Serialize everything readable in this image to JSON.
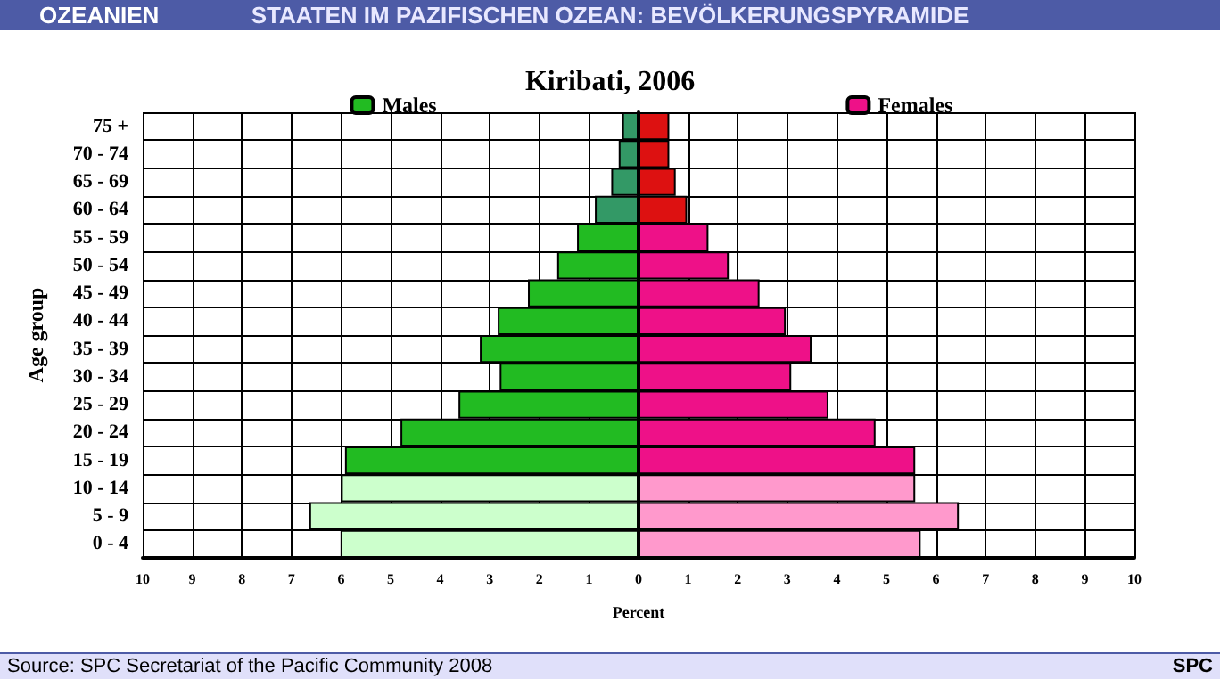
{
  "chart_data": {
    "type": "bar",
    "orientation": "horizontal",
    "stacked": true,
    "title": "Kiribati, 2006",
    "xlabel": "Percent",
    "ylabel": "Age group",
    "annotations": [
      "OZEANIEN",
      "STAATEN IM PAZIFISCHEN OZEAN: BEVÖLKERUNGSPYRAMIDE",
      "Source: SPC Secretariat of the Pacific Community 2008",
      "SPC"
    ],
    "categories": [
      "75 +",
      "70 - 74",
      "65 - 69",
      "60 - 64",
      "55 - 59",
      "50 - 54",
      "45 - 49",
      "40 - 44",
      "35 - 39",
      "30 - 34",
      "25 - 29",
      "20 - 24",
      "15 - 19",
      "10 - 14",
      "5 - 9",
      "0 - 4"
    ],
    "series": [
      {
        "name": "Males",
        "color": "#22bb22",
        "colors": [
          "#339966",
          "#339966",
          "#339966",
          "#339966",
          "#22bb22",
          "#22bb22",
          "#22bb22",
          "#22bb22",
          "#22bb22",
          "#22bb22",
          "#22bb22",
          "#22bb22",
          "#22bb22",
          "#ccffcc",
          "#ccffcc",
          "#ccffcc"
        ],
        "values": [
          -0.33,
          -0.4,
          -0.55,
          -0.88,
          -1.24,
          -1.64,
          -2.23,
          -2.84,
          -3.2,
          -2.8,
          -3.63,
          -4.8,
          -5.92,
          -6.0,
          -6.64,
          -6.01
        ]
      },
      {
        "name": "Females",
        "color": "#ee1188",
        "colors": [
          "#dd1111",
          "#dd1111",
          "#dd1111",
          "#dd1111",
          "#ee1188",
          "#ee1188",
          "#ee1188",
          "#ee1188",
          "#ee1188",
          "#ee1188",
          "#ee1188",
          "#ee1188",
          "#ee1188",
          "#ff99cc",
          "#ff99cc",
          "#ff99cc"
        ],
        "values": [
          0.62,
          0.62,
          0.75,
          0.98,
          1.41,
          1.82,
          2.44,
          2.97,
          3.49,
          3.08,
          3.83,
          4.78,
          5.58,
          5.58,
          6.46,
          5.69
        ]
      }
    ],
    "xlim": [
      -10,
      10
    ],
    "xticks": [
      {
        "value": -10,
        "label": "10"
      },
      {
        "value": -9,
        "label": "9"
      },
      {
        "value": -8,
        "label": "8"
      },
      {
        "value": -7,
        "label": "7"
      },
      {
        "value": -6,
        "label": "6"
      },
      {
        "value": -5,
        "label": "5"
      },
      {
        "value": -4,
        "label": "4"
      },
      {
        "value": -3,
        "label": "3"
      },
      {
        "value": -2,
        "label": "2"
      },
      {
        "value": -1,
        "label": "1"
      },
      0,
      1,
      2,
      3,
      4,
      5,
      6,
      7,
      8,
      9,
      10
    ],
    "grid": true,
    "legend": "top"
  }
}
